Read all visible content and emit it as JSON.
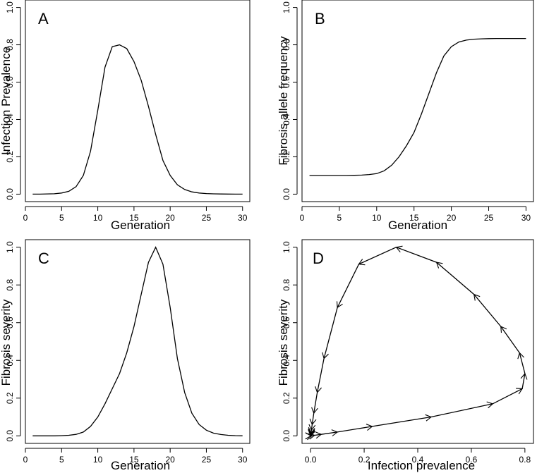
{
  "chart_data": [
    {
      "panel": "A",
      "type": "line",
      "title": "",
      "xlabel": "Generation",
      "ylabel": "Infection Prevalence",
      "xlim": [
        0,
        31
      ],
      "ylim": [
        -0.04,
        1.04
      ],
      "xticks": [
        0,
        5,
        10,
        15,
        20,
        25,
        30
      ],
      "yticks": [
        0.0,
        0.2,
        0.4,
        0.6,
        0.8,
        1.0
      ],
      "xtick_labels": [
        "0",
        "5",
        "10",
        "15",
        "20",
        "25",
        "30"
      ],
      "ytick_labels": [
        "0.0",
        "0.2",
        "0.4",
        "0.6",
        "0.8",
        "1.0"
      ],
      "x": [
        1,
        2,
        3,
        4,
        5,
        6,
        7,
        8,
        9,
        10,
        11,
        12,
        13,
        14,
        15,
        16,
        17,
        18,
        19,
        20,
        21,
        22,
        23,
        24,
        25,
        26,
        27,
        28,
        29,
        30
      ],
      "y": [
        0.0,
        0.0,
        0.001,
        0.002,
        0.006,
        0.015,
        0.04,
        0.1,
        0.23,
        0.45,
        0.68,
        0.79,
        0.8,
        0.78,
        0.71,
        0.61,
        0.47,
        0.32,
        0.18,
        0.1,
        0.05,
        0.025,
        0.012,
        0.006,
        0.003,
        0.0015,
        0.0008,
        0.0004,
        0.0002,
        0.0001
      ]
    },
    {
      "panel": "B",
      "type": "line",
      "title": "",
      "xlabel": "Generation",
      "ylabel": "Fibrosis allele frequency",
      "xlim": [
        0,
        31
      ],
      "ylim": [
        -0.04,
        1.04
      ],
      "xticks": [
        0,
        5,
        10,
        15,
        20,
        25,
        30
      ],
      "yticks": [
        0.0,
        0.2,
        0.4,
        0.6,
        0.8,
        1.0
      ],
      "xtick_labels": [
        "0",
        "5",
        "10",
        "15",
        "20",
        "25",
        "30"
      ],
      "ytick_labels": [
        "0.0",
        "0.2",
        "0.4",
        "0.6",
        "0.8",
        "1.0"
      ],
      "x": [
        1,
        2,
        3,
        4,
        5,
        6,
        7,
        8,
        9,
        10,
        11,
        12,
        13,
        14,
        15,
        16,
        17,
        18,
        19,
        20,
        21,
        22,
        23,
        24,
        25,
        26,
        27,
        28,
        29,
        30
      ],
      "y": [
        0.1,
        0.1,
        0.1,
        0.1,
        0.1,
        0.1,
        0.101,
        0.102,
        0.105,
        0.11,
        0.125,
        0.155,
        0.2,
        0.26,
        0.33,
        0.43,
        0.54,
        0.65,
        0.74,
        0.79,
        0.815,
        0.825,
        0.83,
        0.832,
        0.833,
        0.834,
        0.834,
        0.834,
        0.834,
        0.834
      ]
    },
    {
      "panel": "C",
      "type": "line",
      "title": "",
      "xlabel": "Generation",
      "ylabel": "Fibrosis severity",
      "xlim": [
        0,
        31
      ],
      "ylim": [
        -0.04,
        1.04
      ],
      "xticks": [
        0,
        5,
        10,
        15,
        20,
        25,
        30
      ],
      "yticks": [
        0.0,
        0.2,
        0.4,
        0.6,
        0.8,
        1.0
      ],
      "xtick_labels": [
        "0",
        "5",
        "10",
        "15",
        "20",
        "25",
        "30"
      ],
      "ytick_labels": [
        "0.0",
        "0.2",
        "0.4",
        "0.6",
        "0.8",
        "1.0"
      ],
      "x": [
        1,
        2,
        3,
        4,
        5,
        6,
        7,
        8,
        9,
        10,
        11,
        12,
        13,
        14,
        15,
        16,
        17,
        18,
        19,
        20,
        21,
        22,
        23,
        24,
        25,
        26,
        27,
        28,
        29,
        30
      ],
      "y": [
        0.0,
        0.0,
        0.0,
        0.0,
        0.001,
        0.003,
        0.008,
        0.02,
        0.05,
        0.1,
        0.17,
        0.25,
        0.33,
        0.44,
        0.58,
        0.75,
        0.92,
        1.0,
        0.91,
        0.68,
        0.41,
        0.23,
        0.12,
        0.06,
        0.03,
        0.014,
        0.007,
        0.003,
        0.001,
        0.0005
      ]
    },
    {
      "panel": "D",
      "type": "line",
      "title": "",
      "xlabel": "Infection prevalence",
      "ylabel": "Fibrosis severity",
      "xlim": [
        -0.032,
        0.832
      ],
      "ylim": [
        -0.04,
        1.04
      ],
      "xticks": [
        0.0,
        0.2,
        0.4,
        0.6,
        0.8
      ],
      "yticks": [
        0.0,
        0.2,
        0.4,
        0.6,
        0.8,
        1.0
      ],
      "xtick_labels": [
        "0.0",
        "0.2",
        "0.4",
        "0.6",
        "0.8"
      ],
      "ytick_labels": [
        "0.0",
        "0.2",
        "0.4",
        "0.6",
        "0.8",
        "1.0"
      ],
      "x": [
        0.0,
        0.0,
        0.001,
        0.002,
        0.006,
        0.015,
        0.04,
        0.1,
        0.23,
        0.45,
        0.68,
        0.79,
        0.8,
        0.78,
        0.71,
        0.61,
        0.47,
        0.32,
        0.18,
        0.1,
        0.05,
        0.025,
        0.012,
        0.006,
        0.003,
        0.0015,
        0.0008,
        0.0004,
        0.0002,
        0.0001
      ],
      "y": [
        0.0,
        0.0,
        0.0,
        0.0,
        0.001,
        0.003,
        0.008,
        0.02,
        0.05,
        0.1,
        0.17,
        0.25,
        0.33,
        0.44,
        0.58,
        0.75,
        0.92,
        1.0,
        0.91,
        0.68,
        0.41,
        0.23,
        0.12,
        0.06,
        0.03,
        0.014,
        0.007,
        0.003,
        0.001,
        0.0005
      ],
      "arrows": true
    }
  ]
}
